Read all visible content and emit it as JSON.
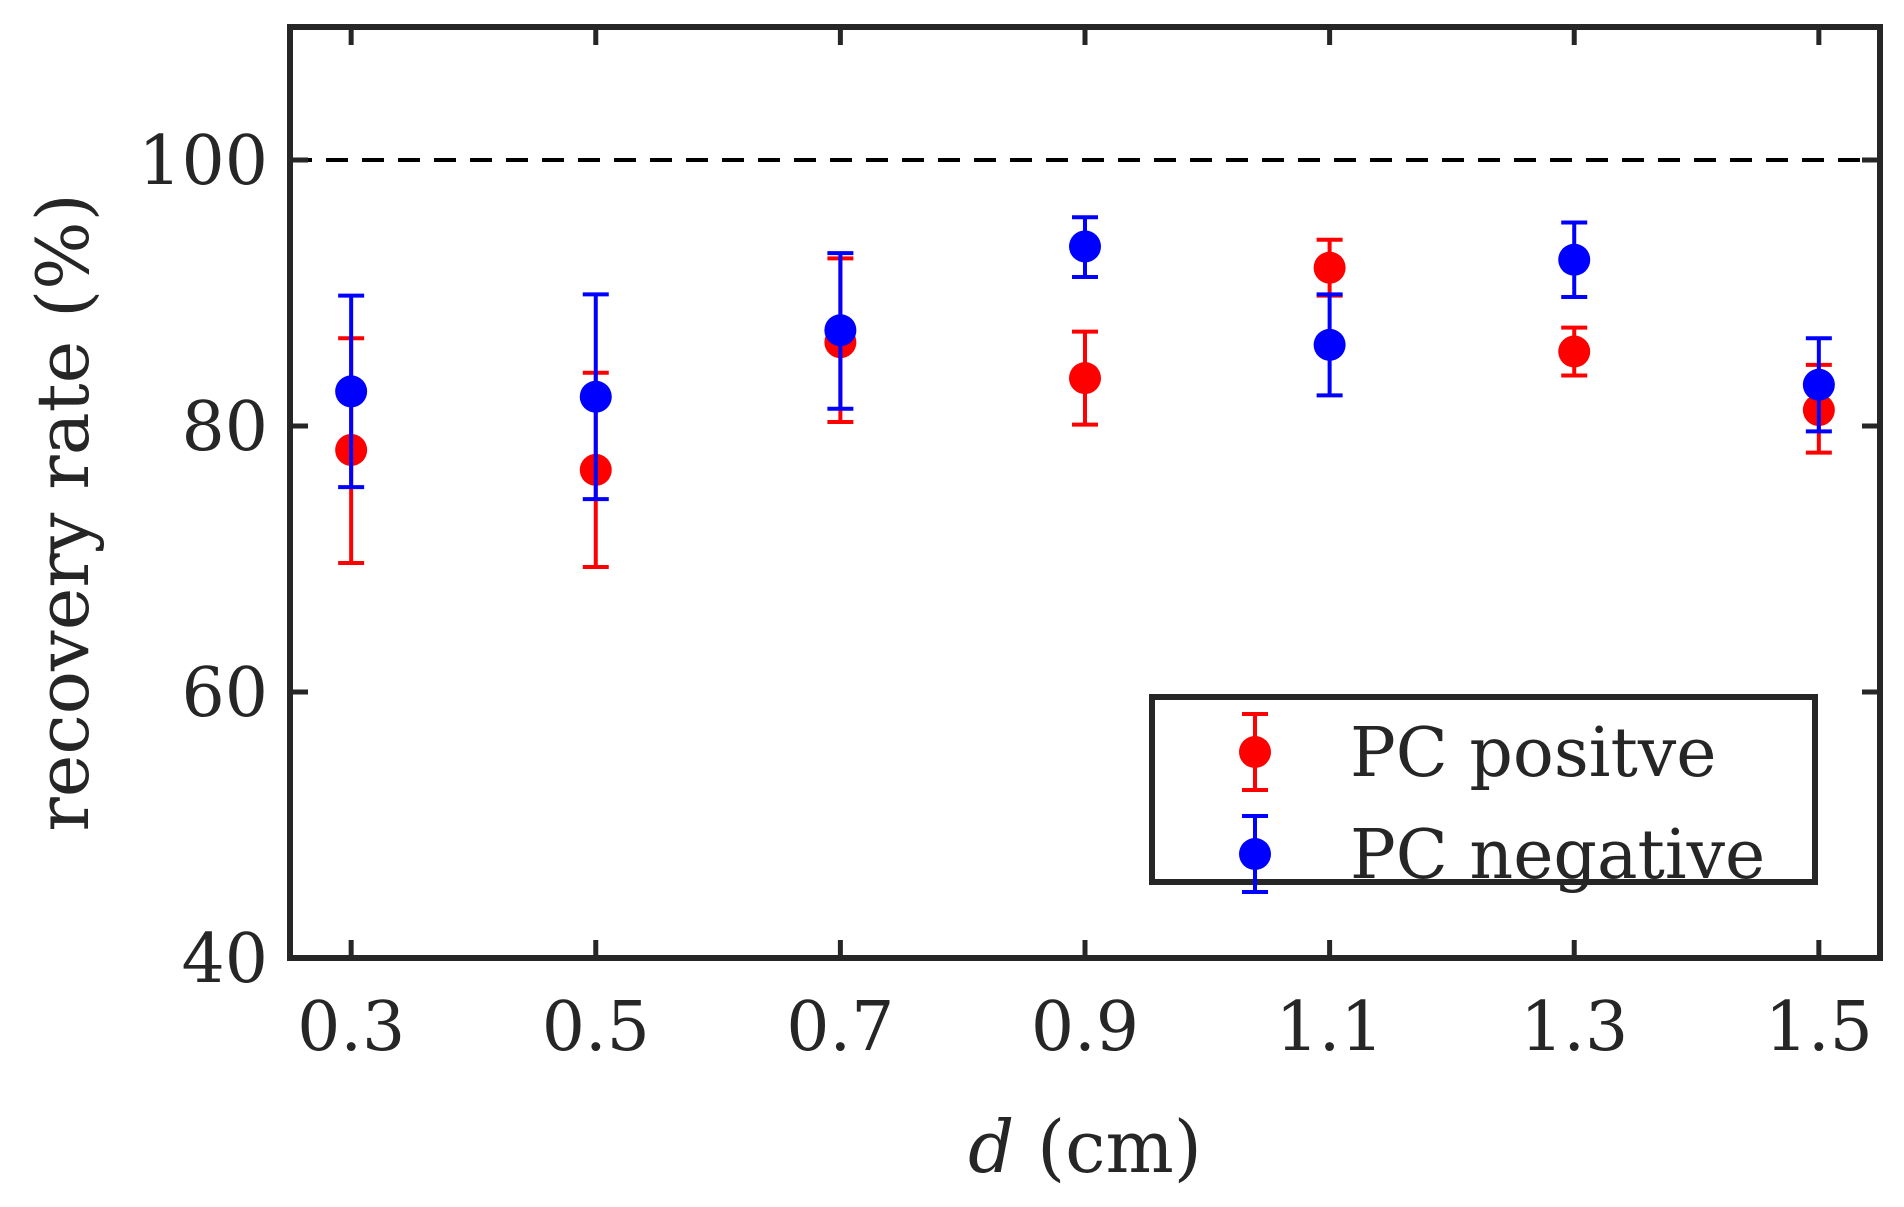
{
  "chart_data": {
    "type": "scatter",
    "title": "",
    "xlabel": "(cm)",
    "xlabel_var": "d",
    "ylabel": "recovery rate (%)",
    "xlim": [
      0.25,
      1.55
    ],
    "ylim": [
      40,
      110
    ],
    "x_ticks": [
      0.3,
      0.5,
      0.7,
      0.9,
      1.1,
      1.3,
      1.5
    ],
    "x_tick_labels": [
      "0.3",
      "0.5",
      "0.7",
      "0.9",
      "1.1",
      "1.3",
      "1.5"
    ],
    "y_ticks": [
      40,
      60,
      80,
      100
    ],
    "y_tick_labels": [
      "40",
      "60",
      "80",
      "100"
    ],
    "reference_line": {
      "y": 100,
      "style": "dashed",
      "color": "#000000"
    },
    "legend_position": "bottom-right",
    "series": [
      {
        "name": "PC positve",
        "color": "#ff0000",
        "x": [
          0.3,
          0.5,
          0.7,
          0.9,
          1.1,
          1.3,
          1.5
        ],
        "y": [
          78.2,
          76.7,
          86.3,
          83.6,
          91.9,
          85.6,
          81.2
        ],
        "err_low": [
          69.7,
          69.4,
          80.3,
          80.1,
          89.8,
          83.8,
          78.0
        ],
        "err_high": [
          86.6,
          84.0,
          92.6,
          87.1,
          94.0,
          87.4,
          84.6
        ]
      },
      {
        "name": "PC negative",
        "color": "#0000ff",
        "x": [
          0.3,
          0.5,
          0.7,
          0.9,
          1.1,
          1.3,
          1.5
        ],
        "y": [
          82.6,
          82.2,
          87.2,
          93.5,
          86.1,
          92.5,
          83.1
        ],
        "err_low": [
          75.4,
          74.5,
          81.3,
          91.2,
          82.3,
          89.7,
          79.6
        ],
        "err_high": [
          89.8,
          89.9,
          93.0,
          95.7,
          89.9,
          95.3,
          86.6
        ]
      }
    ]
  }
}
